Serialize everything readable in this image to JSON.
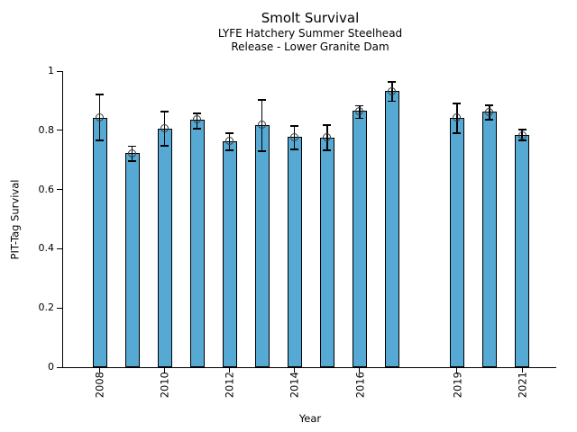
{
  "chart_data": {
    "type": "bar",
    "title": "Smolt Survival",
    "subtitle_line1": "LYFE Hatchery Summer Steelhead",
    "subtitle_line2": "Release - Lower Granite Dam",
    "xlabel": "Year",
    "ylabel": "PIT-Tag Survival",
    "ylim": [
      0,
      1
    ],
    "yticks": [
      0,
      0.2,
      0.4,
      0.6,
      0.8,
      1
    ],
    "ytick_labels": [
      "0",
      "0.2",
      "0.4",
      "0.6",
      "0.8",
      "1"
    ],
    "xtick_years": [
      2008,
      2010,
      2012,
      2014,
      2016,
      2019,
      2021
    ],
    "grid": false,
    "legend_position": "none",
    "bar_color": "#56a9d3",
    "bar_edge_color": "#000000",
    "error_bar_color": "#000000",
    "marker": "open-circle",
    "points": [
      {
        "year": 2008,
        "value": 0.843,
        "ci": [
          0.766,
          0.921
        ]
      },
      {
        "year": 2009,
        "value": 0.722,
        "ci": [
          0.696,
          0.746
        ]
      },
      {
        "year": 2010,
        "value": 0.806,
        "ci": [
          0.748,
          0.863
        ]
      },
      {
        "year": 2011,
        "value": 0.836,
        "ci": [
          0.806,
          0.857
        ]
      },
      {
        "year": 2012,
        "value": 0.764,
        "ci": [
          0.733,
          0.79
        ]
      },
      {
        "year": 2013,
        "value": 0.818,
        "ci": [
          0.73,
          0.903
        ]
      },
      {
        "year": 2014,
        "value": 0.778,
        "ci": [
          0.736,
          0.815
        ]
      },
      {
        "year": 2015,
        "value": 0.776,
        "ci": [
          0.733,
          0.818
        ]
      },
      {
        "year": 2016,
        "value": 0.866,
        "ci": [
          0.84,
          0.883
        ]
      },
      {
        "year": 2017,
        "value": 0.933,
        "ci": [
          0.898,
          0.963
        ]
      },
      {
        "year": 2019,
        "value": 0.842,
        "ci": [
          0.79,
          0.891
        ]
      },
      {
        "year": 2020,
        "value": 0.863,
        "ci": [
          0.836,
          0.885
        ]
      },
      {
        "year": 2021,
        "value": 0.784,
        "ci": [
          0.766,
          0.803
        ]
      }
    ]
  }
}
